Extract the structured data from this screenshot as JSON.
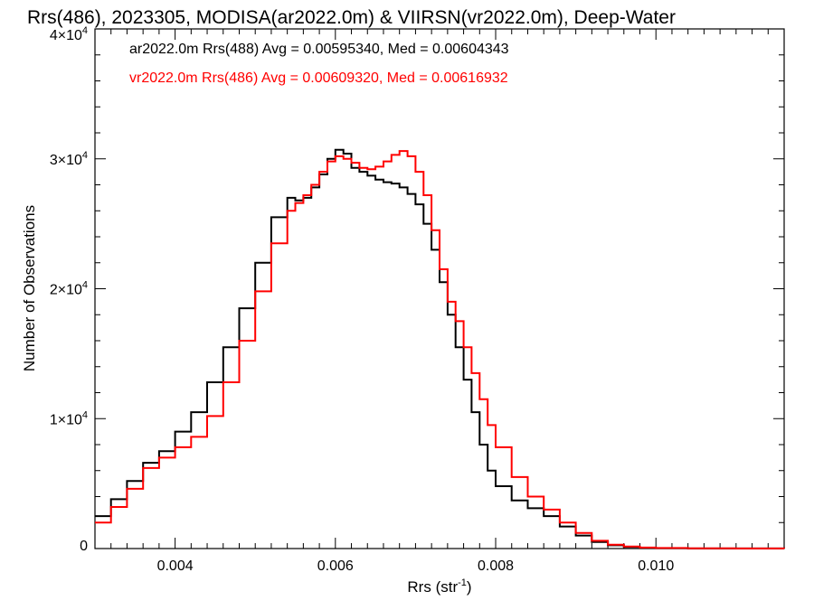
{
  "chart_data": {
    "type": "line",
    "title": "Rrs(486), 2023305, MODISA(ar2022.0m) & VIIRSN(vr2022.0m), Deep-Water",
    "xlabel": "Rrs (str",
    "xlabel_sup": "-1",
    "xlabel_end": ")",
    "ylabel": "Number of Observations",
    "xlim": [
      0.003,
      0.0116
    ],
    "ylim": [
      0,
      40000
    ],
    "x_ticks": [
      0.004,
      0.006,
      0.008,
      0.01
    ],
    "x_tick_labels": [
      "0.004",
      "0.006",
      "0.008",
      "0.010"
    ],
    "y_ticks": [
      {
        "value": 0,
        "mantissa": "0",
        "exp": ""
      },
      {
        "value": 10000,
        "mantissa": "1×10",
        "exp": "4"
      },
      {
        "value": 20000,
        "mantissa": "2×10",
        "exp": "4"
      },
      {
        "value": 30000,
        "mantissa": "3×10",
        "exp": "4"
      },
      {
        "value": 40000,
        "mantissa": "4×10",
        "exp": "4"
      }
    ],
    "grid": false,
    "legend_placement": "top-left",
    "series": [
      {
        "name": "ar2022.0m Rrs(488) Avg = 0.00595340, Med = 0.00604343",
        "color": "#000000",
        "x": [
          0.003,
          0.0032,
          0.0034,
          0.0036,
          0.0038,
          0.004,
          0.0042,
          0.0044,
          0.0046,
          0.0048,
          0.005,
          0.0052,
          0.0054,
          0.0055,
          0.0056,
          0.0057,
          0.0058,
          0.0059,
          0.006,
          0.0061,
          0.0062,
          0.0063,
          0.0064,
          0.0065,
          0.0066,
          0.0067,
          0.0068,
          0.0069,
          0.007,
          0.0071,
          0.0072,
          0.0073,
          0.0074,
          0.0075,
          0.0076,
          0.0077,
          0.0078,
          0.0079,
          0.008,
          0.0082,
          0.0084,
          0.0086,
          0.0088,
          0.009,
          0.0092,
          0.0094,
          0.0096,
          0.0098,
          0.01,
          0.0104,
          0.011,
          0.0116
        ],
        "y": [
          2500,
          3800,
          5200,
          6600,
          7500,
          9000,
          10500,
          12800,
          15500,
          18500,
          22000,
          25500,
          27000,
          26800,
          27000,
          27800,
          28800,
          30000,
          30700,
          30400,
          29300,
          29000,
          28700,
          28400,
          28200,
          28100,
          27800,
          27300,
          26500,
          25000,
          23000,
          20500,
          18000,
          15500,
          13000,
          10500,
          8000,
          6000,
          4800,
          3700,
          3100,
          2500,
          1700,
          1000,
          500,
          250,
          120,
          60,
          30,
          10,
          5,
          0
        ]
      },
      {
        "name": "vr2022.0m Rrs(486) Avg = 0.00609320, Med = 0.00616932",
        "color": "#ff0000",
        "x": [
          0.003,
          0.0032,
          0.0034,
          0.0036,
          0.0038,
          0.004,
          0.0042,
          0.0044,
          0.0046,
          0.0048,
          0.005,
          0.0052,
          0.0054,
          0.0055,
          0.0056,
          0.0057,
          0.0058,
          0.0059,
          0.006,
          0.0061,
          0.0062,
          0.0063,
          0.0064,
          0.0065,
          0.0066,
          0.0067,
          0.0068,
          0.0069,
          0.007,
          0.0071,
          0.0072,
          0.0073,
          0.0074,
          0.0075,
          0.0076,
          0.0077,
          0.0078,
          0.0079,
          0.008,
          0.0082,
          0.0084,
          0.0086,
          0.0088,
          0.009,
          0.0092,
          0.0094,
          0.0096,
          0.0098,
          0.01,
          0.0104,
          0.011,
          0.0116
        ],
        "y": [
          2000,
          3200,
          4600,
          6200,
          7000,
          7800,
          8600,
          10200,
          12800,
          16000,
          19800,
          23500,
          26000,
          26600,
          27200,
          28000,
          29000,
          29800,
          30200,
          30000,
          29700,
          29300,
          29200,
          29400,
          29800,
          30300,
          30600,
          30200,
          29000,
          27200,
          24500,
          21500,
          19000,
          17500,
          15500,
          13500,
          11500,
          9500,
          7800,
          5500,
          4000,
          3000,
          2000,
          1200,
          600,
          300,
          150,
          80,
          40,
          15,
          5,
          0
        ]
      }
    ]
  }
}
